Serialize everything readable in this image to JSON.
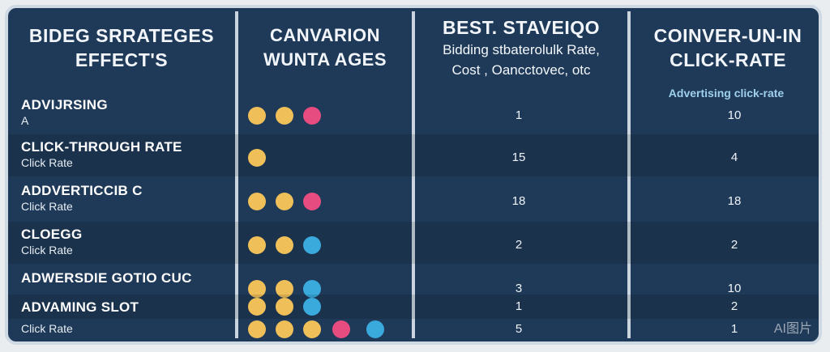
{
  "headers": {
    "col1": {
      "line1": "BIDEG SRRATEGES",
      "line2": "EFFECT'S"
    },
    "col2": {
      "line1": "CANVARION",
      "line2": "WUNTA AGES"
    },
    "col3": {
      "line1": "BEST. STAVEIQO",
      "line2": "Bidding stbaterolulk Rate,",
      "line3": "Cost , Oancctovec, otc"
    },
    "col4": {
      "line1": "COINVER-UN-IN",
      "line2": "CLICK-RATE",
      "note": "Advertising click-rate"
    }
  },
  "rows": [
    {
      "label": "ADVIJRSING",
      "sub": "A",
      "dots": [
        "yellow",
        "yellow",
        "pink"
      ],
      "v1": "1",
      "v2": "10"
    },
    {
      "label": "CLICK-THROUGH RATE",
      "sub": "Click Rate",
      "dots": [
        "yellow"
      ],
      "v1": "15",
      "v2": "4"
    },
    {
      "label": "ADDVERTICCIB C",
      "sub": "Click Rate",
      "dots": [
        "yellow",
        "yellow",
        "pink"
      ],
      "v1": "18",
      "v2": "18"
    },
    {
      "label": "CLOEGG",
      "sub": "Click Rate",
      "dots": [
        "yellow",
        "yellow",
        "blue"
      ],
      "v1": "2",
      "v2": "2"
    },
    {
      "label": "ADWERSDIE GOTIO CUC",
      "sub": "",
      "dots": [
        "yellow",
        "yellow",
        "blue"
      ],
      "v1": "3",
      "v2": "10"
    },
    {
      "label": "ADVAMING SLOT",
      "sub": "",
      "dots": [
        "yellow",
        "yellow",
        "blue"
      ],
      "v1": "1",
      "v2": "2"
    },
    {
      "label": "",
      "sub": "Click Rate",
      "dots": [
        "yellow",
        "yellow",
        "yellow",
        "pink",
        "blue"
      ],
      "v1": "5",
      "v2": "1"
    }
  ],
  "colors": {
    "yellow": "#efc05a",
    "pink": "#e64c7f",
    "blue": "#3aa9dc",
    "background": "#1f3a58"
  },
  "watermark": "AI图片"
}
